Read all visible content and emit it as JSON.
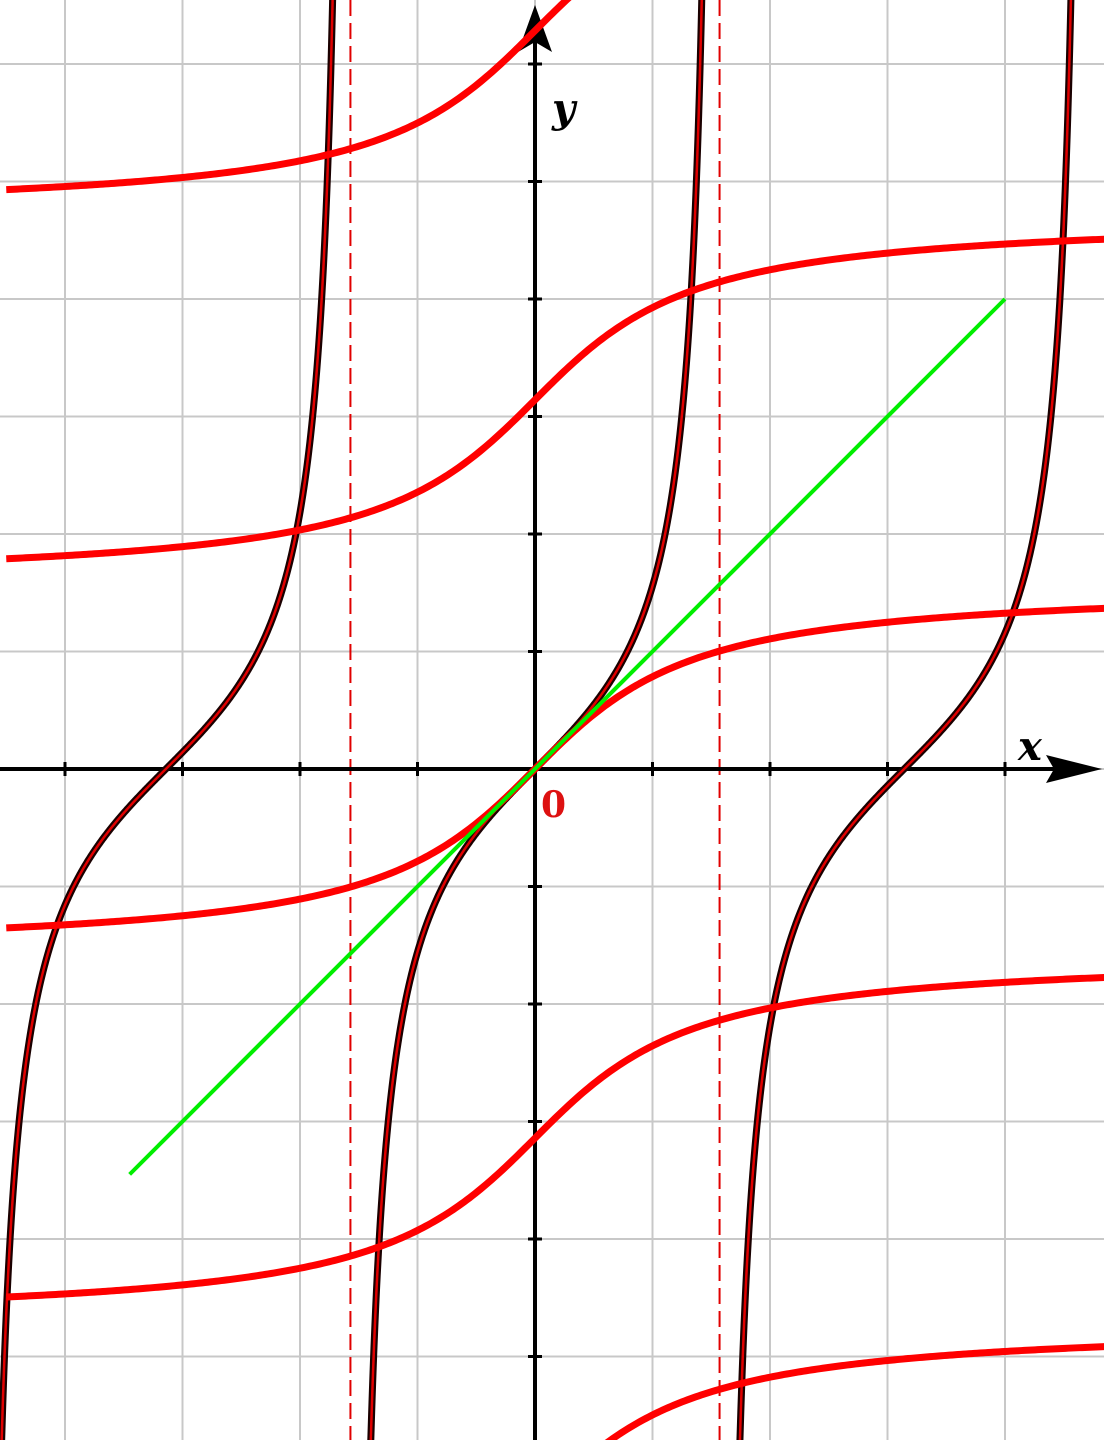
{
  "chart_data": {
    "type": "line",
    "title": "",
    "xlabel": "x",
    "ylabel": "y",
    "origin_label": "0",
    "grid": true,
    "xlim": [
      -4.5,
      4.89
    ],
    "ylim": [
      -5.93,
      6.85
    ],
    "ticks_spacing": 1,
    "asymptotes": [
      {
        "name": "",
        "x": -1.5708
      },
      {
        "name": "",
        "x": 1.5708
      }
    ],
    "series": [
      {
        "name": "",
        "function": "tan",
        "branches": [
          -1,
          0,
          1
        ],
        "color": "#e00000"
      },
      {
        "name": "",
        "function": "arctan",
        "branches": [
          -2,
          -1,
          0,
          1,
          2,
          3
        ],
        "color": "#ff0000"
      },
      {
        "name": "",
        "function": "line",
        "x": [
          -3.45,
          4.0
        ],
        "y": [
          -3.45,
          4.0
        ],
        "color": "#00ee00"
      }
    ],
    "colors": {
      "grid": "#c8c8c8",
      "axes": "#000000",
      "tan_outline": "#1a0000",
      "origin_label": "#dd1111"
    }
  }
}
